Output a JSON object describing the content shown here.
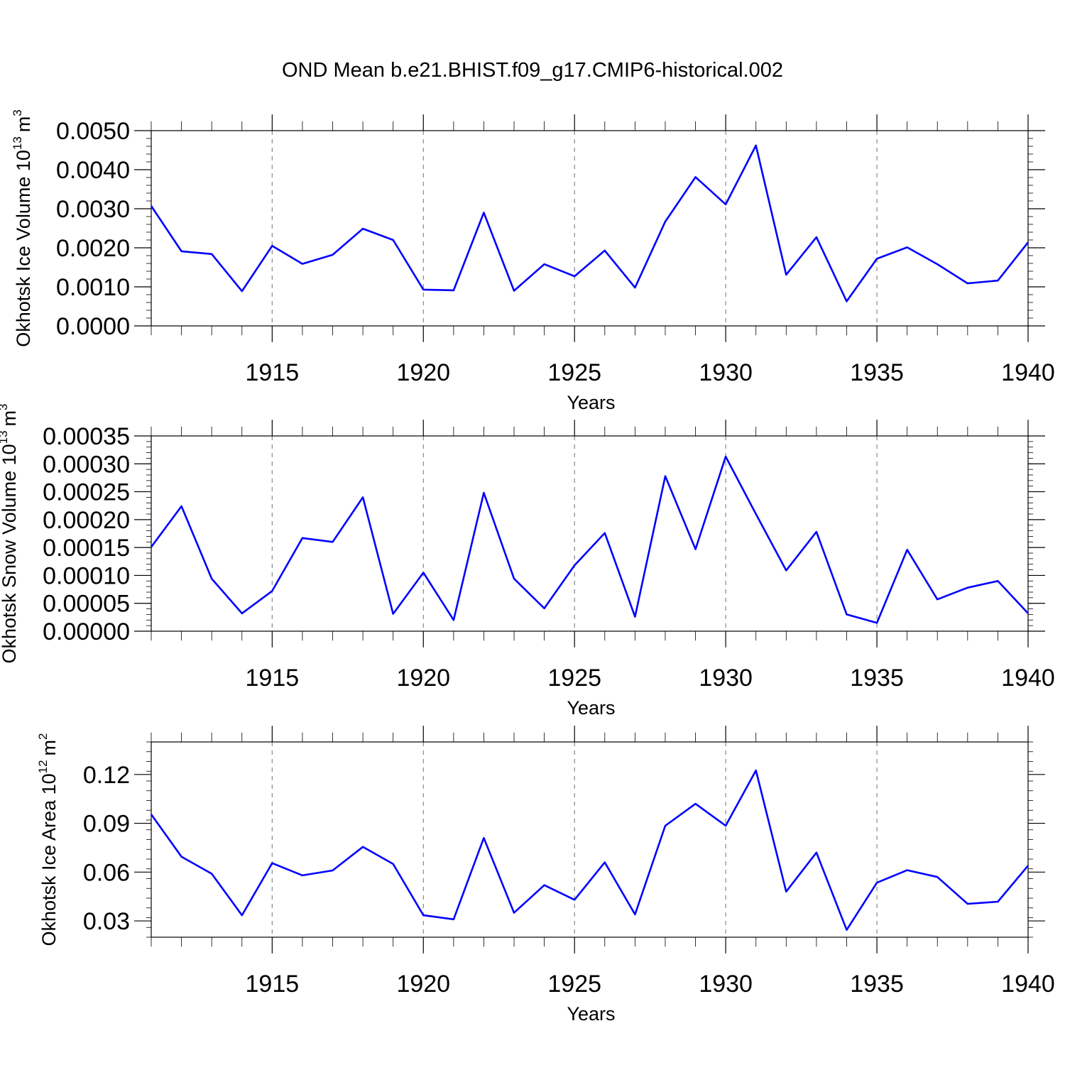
{
  "chart_data": {
    "title": "OND Mean b.e21.BHIST.f09_g17.CMIP6-historical.002",
    "type": "line",
    "panels": [
      {
        "type": "line",
        "ylabel_main": "Okhotsk Ice Volume 10",
        "ylabel_exp": "13",
        "ylabel_unit": "m",
        "ylabel_unit_exp": "3",
        "xlabel": "Years",
        "xlim": [
          1911,
          1940
        ],
        "ylim": [
          0,
          0.005
        ],
        "yticks": [
          0,
          0.001,
          0.002,
          0.003,
          0.004,
          0.005
        ],
        "yticklabels": [
          "0.0000",
          "0.0010",
          "0.0020",
          "0.0030",
          "0.0040",
          "0.0050"
        ],
        "yminor_step": 0.0002,
        "xticks": [
          1915,
          1920,
          1925,
          1930,
          1935,
          1940
        ],
        "xticklabels": [
          "1915",
          "1920",
          "1925",
          "1930",
          "1935",
          "1940"
        ],
        "series": [
          {
            "name": "Okhotsk Ice Volume",
            "color": "#0000ff",
            "x": [
              1911,
              1912,
              1913,
              1914,
              1915,
              1916,
              1917,
              1918,
              1919,
              1920,
              1921,
              1922,
              1923,
              1924,
              1925,
              1926,
              1927,
              1928,
              1929,
              1930,
              1931,
              1932,
              1933,
              1934,
              1935,
              1936,
              1937,
              1938,
              1939,
              1940
            ],
            "values": [
              0.00307,
              0.00191,
              0.00184,
              0.00089,
              0.00205,
              0.00159,
              0.00182,
              0.00249,
              0.0022,
              0.00093,
              0.00091,
              0.0029,
              0.0009,
              0.00158,
              0.00127,
              0.00193,
              0.00098,
              0.00267,
              0.00381,
              0.00311,
              0.00462,
              0.00131,
              0.00227,
              0.00063,
              0.00172,
              0.00201,
              0.00158,
              0.00109,
              0.00116,
              0.00214
            ]
          }
        ]
      },
      {
        "type": "line",
        "ylabel_main": "Okhotsk Snow Volume 10",
        "ylabel_exp": "13",
        "ylabel_unit": "m",
        "ylabel_unit_exp": "3",
        "xlabel": "Years",
        "xlim": [
          1911,
          1940
        ],
        "ylim": [
          0,
          0.00035
        ],
        "yticks": [
          0,
          5e-05,
          0.0001,
          0.00015,
          0.0002,
          0.00025,
          0.0003,
          0.00035
        ],
        "yticklabels": [
          "0.00000",
          "0.00005",
          "0.00010",
          "0.00015",
          "0.00020",
          "0.00025",
          "0.00030",
          "0.00035"
        ],
        "yminor_step": 1e-05,
        "xticks": [
          1915,
          1920,
          1925,
          1930,
          1935,
          1940
        ],
        "xticklabels": [
          "1915",
          "1920",
          "1925",
          "1930",
          "1935",
          "1940"
        ],
        "series": [
          {
            "name": "Okhotsk Snow Volume",
            "color": "#0000ff",
            "x": [
              1911,
              1912,
              1913,
              1914,
              1915,
              1916,
              1917,
              1918,
              1919,
              1920,
              1921,
              1922,
              1923,
              1924,
              1925,
              1926,
              1927,
              1928,
              1929,
              1930,
              1931,
              1932,
              1933,
              1934,
              1935,
              1936,
              1937,
              1938,
              1939,
              1940
            ],
            "values": [
              0.000151,
              0.000224,
              9.4e-05,
              3.2e-05,
              7.2e-05,
              0.000167,
              0.00016,
              0.00024,
              3.1e-05,
              0.000105,
              2e-05,
              0.000248,
              9.4e-05,
              4.1e-05,
              0.000118,
              0.000176,
              2.6e-05,
              0.000278,
              0.000147,
              0.000313,
              0.00021,
              0.000109,
              0.000178,
              3e-05,
              1.5e-05,
              0.000146,
              5.7e-05,
              7.8e-05,
              9e-05,
              3.2e-05
            ]
          }
        ]
      },
      {
        "type": "line",
        "ylabel_main": "Okhotsk Ice Area 10",
        "ylabel_exp": "12",
        "ylabel_unit": "m",
        "ylabel_unit_exp": "2",
        "xlabel": "Years",
        "xlim": [
          1911,
          1940
        ],
        "ylim": [
          0.02,
          0.14
        ],
        "yticks": [
          0.03,
          0.06,
          0.09,
          0.12
        ],
        "yticklabels": [
          "0.03",
          "0.06",
          "0.09",
          "0.12"
        ],
        "yminor_step": 0.006,
        "xticks": [
          1915,
          1920,
          1925,
          1930,
          1935,
          1940
        ],
        "xticklabels": [
          "1915",
          "1920",
          "1925",
          "1930",
          "1935",
          "1940"
        ],
        "series": [
          {
            "name": "Okhotsk Ice Area",
            "color": "#0000ff",
            "x": [
              1911,
              1912,
              1913,
              1914,
              1915,
              1916,
              1917,
              1918,
              1919,
              1920,
              1921,
              1922,
              1923,
              1924,
              1925,
              1926,
              1927,
              1928,
              1929,
              1930,
              1931,
              1932,
              1933,
              1934,
              1935,
              1936,
              1937,
              1938,
              1939,
              1940
            ],
            "values": [
              0.0955,
              0.0695,
              0.059,
              0.0335,
              0.0655,
              0.058,
              0.061,
              0.0755,
              0.065,
              0.0335,
              0.031,
              0.081,
              0.035,
              0.052,
              0.043,
              0.066,
              0.034,
              0.0885,
              0.102,
              0.0885,
              0.1225,
              0.048,
              0.072,
              0.0245,
              0.0535,
              0.0612,
              0.057,
              0.0405,
              0.0418,
              0.064
            ]
          }
        ]
      }
    ]
  }
}
